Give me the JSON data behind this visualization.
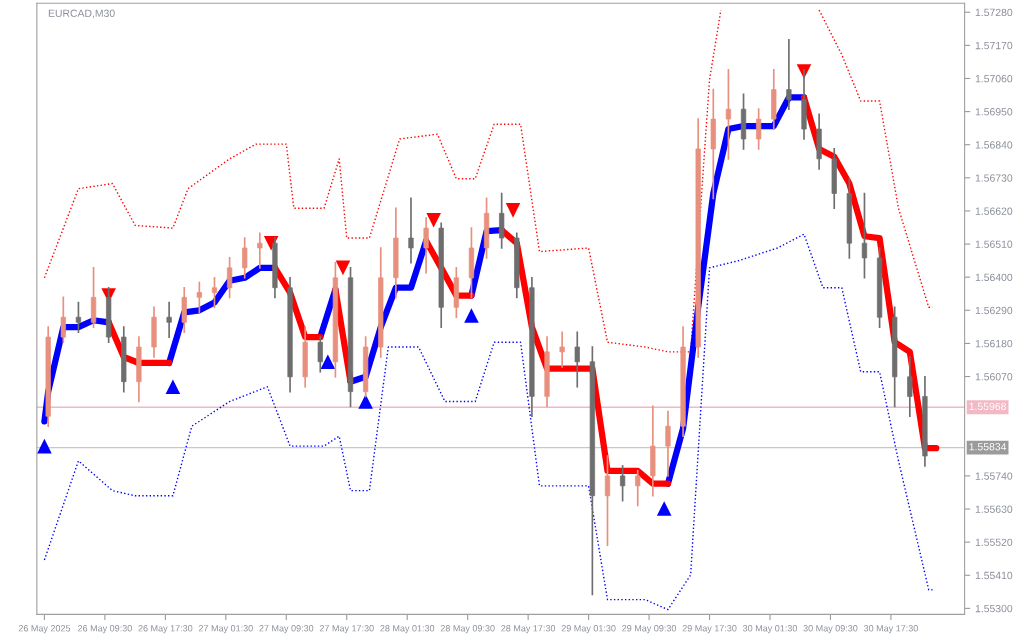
{
  "chart_data": {
    "type": "candlestick",
    "title": "EURCAD,M30",
    "xlim": [
      "2025-05-26T00:30",
      "2025-05-31T03:15"
    ],
    "xticks": [
      {
        "value": "2025-05-26T01:30",
        "label": "26 May 2025"
      },
      {
        "value": "2025-05-26T09:30",
        "label": "26 May 09:30"
      },
      {
        "value": "2025-05-26T17:30",
        "label": "26 May 17:30"
      },
      {
        "value": "2025-05-27T01:30",
        "label": "27 May 01:30"
      },
      {
        "value": "2025-05-27T09:30",
        "label": "27 May 09:30"
      },
      {
        "value": "2025-05-27T17:30",
        "label": "27 May 17:30"
      },
      {
        "value": "2025-05-28T01:30",
        "label": "28 May 01:30"
      },
      {
        "value": "2025-05-28T09:30",
        "label": "28 May 09:30"
      },
      {
        "value": "2025-05-28T17:30",
        "label": "28 May 17:30"
      },
      {
        "value": "2025-05-29T01:30",
        "label": "29 May 01:30"
      },
      {
        "value": "2025-05-29T09:30",
        "label": "29 May 09:30"
      },
      {
        "value": "2025-05-29T17:30",
        "label": "29 May 17:30"
      },
      {
        "value": "2025-05-30T01:30",
        "label": "30 May 01:30"
      },
      {
        "value": "2025-05-30T09:30",
        "label": "30 May 09:30"
      },
      {
        "value": "2025-05-30T17:30",
        "label": "30 May 17:30"
      }
    ],
    "ylim": [
      1.5528,
      1.5731
    ],
    "yticks": [
      {
        "value": 1.553,
        "label": "1.55300"
      },
      {
        "value": 1.5541,
        "label": "1.55410"
      },
      {
        "value": 1.5552,
        "label": "1.55520"
      },
      {
        "value": 1.5563,
        "label": "1.55630"
      },
      {
        "value": 1.5574,
        "label": "1.55740"
      },
      {
        "value": 1.5607,
        "label": "1.56070"
      },
      {
        "value": 1.5618,
        "label": "1.56180"
      },
      {
        "value": 1.5629,
        "label": "1.56290"
      },
      {
        "value": 1.564,
        "label": "1.56400"
      },
      {
        "value": 1.5651,
        "label": "1.56510"
      },
      {
        "value": 1.5662,
        "label": "1.56620"
      },
      {
        "value": 1.5673,
        "label": "1.56730"
      },
      {
        "value": 1.5684,
        "label": "1.56840"
      },
      {
        "value": 1.5695,
        "label": "1.56950"
      },
      {
        "value": 1.5706,
        "label": "1.57060"
      },
      {
        "value": 1.5717,
        "label": "1.57170"
      },
      {
        "value": 1.5728,
        "label": "1.57280"
      }
    ],
    "grid": false,
    "ref_lines": [
      {
        "axis": "y",
        "value": 1.55968,
        "label": "1.55968",
        "color": "#f2b8c6"
      },
      {
        "axis": "y",
        "value": 1.55834,
        "label": "1.55834",
        "color": "#c8c8c8"
      }
    ],
    "series": [
      {
        "x": [
          "2025-05-26T02:00",
          "2025-05-26T04:00",
          "2025-05-26T06:00",
          "2025-05-26T08:00",
          "2025-05-26T10:00",
          "2025-05-26T12:00",
          "2025-05-26T14:00",
          "2025-05-26T16:00",
          "2025-05-26T18:00",
          "2025-05-26T20:00",
          "2025-05-26T22:00",
          "2025-05-27T00:00",
          "2025-05-27T02:00",
          "2025-05-27T04:00",
          "2025-05-27T06:00",
          "2025-05-27T08:00",
          "2025-05-27T10:00",
          "2025-05-27T12:00",
          "2025-05-27T14:00",
          "2025-05-27T16:00",
          "2025-05-27T18:00",
          "2025-05-27T20:00",
          "2025-05-27T22:00",
          "2025-05-28T00:00",
          "2025-05-28T02:00",
          "2025-05-28T04:00",
          "2025-05-28T06:00",
          "2025-05-28T08:00",
          "2025-05-28T10:00",
          "2025-05-28T12:00",
          "2025-05-28T14:00",
          "2025-05-28T16:00",
          "2025-05-28T18:00",
          "2025-05-28T20:00",
          "2025-05-28T22:00",
          "2025-05-29T00:00",
          "2025-05-29T02:00",
          "2025-05-29T04:00",
          "2025-05-29T06:00",
          "2025-05-29T08:00",
          "2025-05-29T10:00",
          "2025-05-29T12:00",
          "2025-05-29T14:00",
          "2025-05-29T16:00",
          "2025-05-29T18:00",
          "2025-05-29T20:00",
          "2025-05-29T22:00",
          "2025-05-30T00:00",
          "2025-05-30T02:00",
          "2025-05-30T04:00",
          "2025-05-30T06:00",
          "2025-05-30T08:00",
          "2025-05-30T10:00",
          "2025-05-30T12:00",
          "2025-05-30T14:00",
          "2025-05-30T16:00",
          "2025-05-30T18:00",
          "2025-05-30T20:00",
          "2025-05-30T22:00"
        ],
        "ohlc": [
          [
            1.55938,
            1.56234,
            1.55905,
            1.56201
          ],
          [
            1.56201,
            1.56333,
            1.56184,
            1.56267
          ],
          [
            1.56267,
            1.56316,
            1.56217,
            1.5625
          ],
          [
            1.5625,
            1.56431,
            1.56234,
            1.56333
          ],
          [
            1.56333,
            1.56365,
            1.56184,
            1.56201
          ],
          [
            1.56201,
            1.56234,
            1.5602,
            1.56053
          ],
          [
            1.56053,
            1.56201,
            1.55987,
            1.56168
          ],
          [
            1.56168,
            1.563,
            1.56135,
            1.56267
          ],
          [
            1.56267,
            1.56316,
            1.56201,
            1.5625
          ],
          [
            1.5625,
            1.56365,
            1.56217,
            1.56333
          ],
          [
            1.56333,
            1.56382,
            1.56283,
            1.56349
          ],
          [
            1.56349,
            1.56398,
            1.563,
            1.56365
          ],
          [
            1.56365,
            1.56464,
            1.56333,
            1.56431
          ],
          [
            1.56431,
            1.5653,
            1.56398,
            1.56497
          ],
          [
            1.56497,
            1.56546,
            1.56431,
            1.56513
          ],
          [
            1.56513,
            1.5653,
            1.56333,
            1.56365
          ],
          [
            1.56365,
            1.56398,
            1.5602,
            1.56069
          ],
          [
            1.56069,
            1.56234,
            1.56036,
            1.56184
          ],
          [
            1.56184,
            1.56201,
            1.56086,
            1.56119
          ],
          [
            1.56119,
            1.56448,
            1.56069,
            1.56398
          ],
          [
            1.56398,
            1.56431,
            1.55971,
            1.5602
          ],
          [
            1.5602,
            1.56201,
            1.56004,
            1.56168
          ],
          [
            1.56168,
            1.56497,
            1.56135,
            1.56398
          ],
          [
            1.56398,
            1.56629,
            1.56333,
            1.5653
          ],
          [
            1.5653,
            1.56662,
            1.56448,
            1.56497
          ],
          [
            1.56497,
            1.56596,
            1.56415,
            1.56563
          ],
          [
            1.56563,
            1.56579,
            1.56234,
            1.563
          ],
          [
            1.563,
            1.56431,
            1.56267,
            1.56398
          ],
          [
            1.56398,
            1.56563,
            1.56333,
            1.56497
          ],
          [
            1.56497,
            1.56662,
            1.56464,
            1.56612
          ],
          [
            1.56612,
            1.56678,
            1.56497,
            1.5653
          ],
          [
            1.5653,
            1.56546,
            1.56333,
            1.56365
          ],
          [
            1.56365,
            1.56398,
            1.55938,
            1.56004
          ],
          [
            1.56004,
            1.56201,
            1.55971,
            1.56152
          ],
          [
            1.56152,
            1.56217,
            1.56102,
            1.56168
          ],
          [
            1.56168,
            1.56217,
            1.56036,
            1.56119
          ],
          [
            1.56119,
            1.56168,
            1.55346,
            1.55674
          ],
          [
            1.55674,
            1.55806,
            1.5551,
            1.5574
          ],
          [
            1.5574,
            1.55773,
            1.55658,
            1.55707
          ],
          [
            1.55707,
            1.55757,
            1.55642,
            1.5574
          ],
          [
            1.5574,
            1.55971,
            1.55674,
            1.55839
          ],
          [
            1.55839,
            1.55954,
            1.5574,
            1.55905
          ],
          [
            1.55905,
            1.56234,
            1.55872,
            1.56168
          ],
          [
            1.56168,
            1.56925,
            1.56135,
            1.56826
          ],
          [
            1.56826,
            1.57023,
            1.56662,
            1.56925
          ],
          [
            1.56925,
            1.57089,
            1.56793,
            1.56958
          ],
          [
            1.56958,
            1.57007,
            1.56826,
            1.56859
          ],
          [
            1.56859,
            1.56958,
            1.56826,
            1.56925
          ],
          [
            1.56925,
            1.57089,
            1.56892,
            1.57023
          ],
          [
            1.57023,
            1.57188,
            1.56958,
            1.5699
          ],
          [
            1.5699,
            1.57089,
            1.56859,
            1.56892
          ],
          [
            1.56892,
            1.56941,
            1.5676,
            1.56793
          ],
          [
            1.56793,
            1.56826,
            1.56629,
            1.56678
          ],
          [
            1.56678,
            1.56727,
            1.56464,
            1.56513
          ],
          [
            1.56513,
            1.56678,
            1.56398,
            1.56464
          ],
          [
            1.56464,
            1.56497,
            1.56234,
            1.56267
          ],
          [
            1.56267,
            1.563,
            1.55971,
            1.56069
          ],
          [
            1.56069,
            1.56135,
            1.55938,
            1.56004
          ],
          [
            1.56004,
            1.56069,
            1.55773,
            1.55806
          ]
        ],
        "colors": [
          "#e8907e",
          "#e8907e",
          "#6e6e6e",
          "#e8907e",
          "#6e6e6e",
          "#6e6e6e",
          "#e8907e",
          "#e8907e",
          "#6e6e6e",
          "#e8907e",
          "#e8907e",
          "#e8907e",
          "#e8907e",
          "#e8907e",
          "#e8907e",
          "#6e6e6e",
          "#6e6e6e",
          "#e8907e",
          "#6e6e6e",
          "#e8907e",
          "#6e6e6e",
          "#e8907e",
          "#e8907e",
          "#e8907e",
          "#6e6e6e",
          "#e8907e",
          "#6e6e6e",
          "#e8907e",
          "#e8907e",
          "#e8907e",
          "#6e6e6e",
          "#6e6e6e",
          "#6e6e6e",
          "#e8907e",
          "#e8907e",
          "#6e6e6e",
          "#6e6e6e",
          "#e8907e",
          "#6e6e6e",
          "#e8907e",
          "#e8907e",
          "#e8907e",
          "#e8907e",
          "#e8907e",
          "#e8907e",
          "#e8907e",
          "#6e6e6e",
          "#e8907e",
          "#e8907e",
          "#6e6e6e",
          "#6e6e6e",
          "#6e6e6e",
          "#6e6e6e",
          "#6e6e6e",
          "#6e6e6e",
          "#6e6e6e",
          "#6e6e6e",
          "#6e6e6e",
          "#6e6e6e"
        ]
      },
      {
        "type": "line",
        "color": "#ff0000",
        "line_style": "dotted",
        "x": [
          "2025-05-26T01:30",
          "2025-05-26T06:00",
          "2025-05-26T10:30",
          "2025-05-26T13:30",
          "2025-05-26T18:30",
          "2025-05-26T20:30",
          "2025-05-27T02:00",
          "2025-05-27T05:30",
          "2025-05-27T09:30",
          "2025-05-27T10:30",
          "2025-05-27T14:30",
          "2025-05-27T16:30",
          "2025-05-27T17:30",
          "2025-05-27T20:30",
          "2025-05-28T00:30",
          "2025-05-28T05:30",
          "2025-05-28T08:00",
          "2025-05-28T10:30",
          "2025-05-28T13:00",
          "2025-05-28T16:30",
          "2025-05-28T19:00",
          "2025-05-29T01:30",
          "2025-05-29T04:00",
          "2025-05-29T09:00",
          "2025-05-29T12:00",
          "2025-05-29T15:00",
          "2025-05-29T17:30",
          "2025-05-29T19:00",
          "2025-05-30T01:00",
          "2025-05-30T08:00",
          "2025-05-30T11:00",
          "2025-05-30T13:30",
          "2025-05-30T16:00",
          "2025-05-30T18:30",
          "2025-05-30T22:30",
          "2025-05-30T23:00"
        ],
        "values": [
          1.56398,
          1.56694,
          1.56711,
          1.56572,
          1.56563,
          1.56694,
          1.56793,
          1.56842,
          1.56842,
          1.56629,
          1.56629,
          1.56793,
          1.5653,
          1.5653,
          1.56859,
          1.56875,
          1.56727,
          1.56727,
          1.56908,
          1.56908,
          1.56485,
          1.56497,
          1.56184,
          1.56168,
          1.56152,
          1.56152,
          1.57056,
          1.57287,
          null,
          1.57287,
          1.57139,
          1.56985,
          1.56985,
          1.56629,
          1.563,
          1.563
        ]
      },
      {
        "type": "line",
        "color": "#0000ff",
        "line_style": "dotted",
        "x": [
          "2025-05-26T01:30",
          "2025-05-26T06:00",
          "2025-05-26T10:30",
          "2025-05-26T13:30",
          "2025-05-26T18:30",
          "2025-05-26T21:00",
          "2025-05-27T02:00",
          "2025-05-27T07:00",
          "2025-05-27T10:00",
          "2025-05-27T14:30",
          "2025-05-27T16:30",
          "2025-05-27T18:00",
          "2025-05-27T20:30",
          "2025-05-27T23:00",
          "2025-05-28T03:00",
          "2025-05-28T06:30",
          "2025-05-28T10:30",
          "2025-05-28T13:00",
          "2025-05-28T16:30",
          "2025-05-28T19:00",
          "2025-05-29T01:30",
          "2025-05-29T04:00",
          "2025-05-29T09:00",
          "2025-05-29T12:00",
          "2025-05-29T15:00",
          "2025-05-29T17:30",
          "2025-05-29T21:30",
          "2025-05-30T02:30",
          "2025-05-30T06:00",
          "2025-05-30T08:30",
          "2025-05-30T11:00",
          "2025-05-30T13:30",
          "2025-05-30T16:00",
          "2025-05-30T18:30",
          "2025-05-30T22:30",
          "2025-05-30T23:00"
        ],
        "values": [
          1.55461,
          1.5579,
          1.55691,
          1.55674,
          1.55674,
          1.55905,
          1.55987,
          1.56036,
          1.55839,
          1.55839,
          1.55872,
          1.55691,
          1.55691,
          1.56168,
          1.56168,
          1.55987,
          1.55987,
          1.56184,
          1.56184,
          1.55707,
          1.55707,
          1.55329,
          1.55329,
          1.55296,
          1.55411,
          1.56431,
          1.56456,
          1.56497,
          1.56543,
          1.56365,
          1.56365,
          1.56086,
          1.56086,
          1.5579,
          1.55362,
          1.55362
        ]
      },
      {
        "type": "line",
        "color": "#0000ff",
        "line_style": "solid",
        "x": [
          "2025-05-26T01:30",
          "2025-05-26T02:00",
          "2025-05-26T04:00",
          "2025-05-26T06:00",
          "2025-05-26T08:00",
          "2025-05-26T10:00",
          "2025-05-26T11:00",
          "2025-05-26T18:00",
          "2025-05-26T20:00",
          "2025-05-26T22:00",
          "2025-05-27T00:00",
          "2025-05-27T02:00",
          "2025-05-27T04:00",
          "2025-05-27T06:00",
          "2025-05-27T08:00",
          "2025-05-27T09:00",
          "2025-05-27T14:00",
          "2025-05-27T16:00",
          "2025-05-27T17:00",
          "2025-05-27T18:00",
          "2025-05-27T20:00",
          "2025-05-27T22:00",
          "2025-05-28T00:00",
          "2025-05-28T02:00",
          "2025-05-28T04:00",
          "2025-05-28T05:00",
          "2025-05-28T10:00",
          "2025-05-28T12:00",
          "2025-05-28T14:00",
          "2025-05-28T15:00",
          "2025-05-29T12:00",
          "2025-05-29T14:00",
          "2025-05-29T16:00",
          "2025-05-29T18:00",
          "2025-05-29T20:00",
          "2025-05-29T22:00",
          "2025-05-30T00:00",
          "2025-05-30T02:00",
          "2025-05-30T04:00",
          "2025-05-30T06:00"
        ],
        "values": [
          1.55921,
          1.5602,
          1.56234,
          1.56234,
          1.56257,
          1.5625,
          null,
          1.56115,
          1.56283,
          1.5629,
          1.56316,
          1.56388,
          1.56398,
          1.56431,
          1.56431,
          null,
          1.56201,
          1.56359,
          null,
          1.56053,
          1.56069,
          1.56234,
          1.56365,
          1.56365,
          1.5652,
          null,
          1.56339,
          1.56553,
          1.56556,
          null,
          1.55714,
          1.55898,
          1.563,
          1.56678,
          1.56892,
          1.56902,
          1.56902,
          1.56902,
          1.56997,
          1.56997
        ]
      },
      {
        "type": "line",
        "color": "#ff0000",
        "line_style": "solid",
        "x": [
          "2025-05-26T10:00",
          "2025-05-26T12:00",
          "2025-05-26T14:00",
          "2025-05-26T16:00",
          "2025-05-26T18:00",
          "2025-05-26T19:00",
          "2025-05-27T08:00",
          "2025-05-27T10:00",
          "2025-05-27T12:00",
          "2025-05-27T14:00",
          "2025-05-27T15:00",
          "2025-05-27T16:00",
          "2025-05-27T18:00",
          "2025-05-27T19:00",
          "2025-05-28T04:00",
          "2025-05-28T06:00",
          "2025-05-28T08:00",
          "2025-05-28T10:00",
          "2025-05-28T11:00",
          "2025-05-28T14:00",
          "2025-05-28T16:00",
          "2025-05-28T18:00",
          "2025-05-28T20:00",
          "2025-05-28T22:00",
          "2025-05-29T00:00",
          "2025-05-29T02:00",
          "2025-05-29T04:00",
          "2025-05-29T06:00",
          "2025-05-29T08:00",
          "2025-05-29T10:00",
          "2025-05-29T12:00",
          "2025-05-29T13:00",
          "2025-05-30T06:00",
          "2025-05-30T08:00",
          "2025-05-30T10:00",
          "2025-05-30T12:00",
          "2025-05-30T14:00",
          "2025-05-30T16:00",
          "2025-05-30T18:00",
          "2025-05-30T20:00",
          "2025-05-30T22:00",
          "2025-05-30T23:30"
        ],
        "values": [
          1.5625,
          1.56135,
          1.56115,
          1.56115,
          1.56115,
          null,
          1.56431,
          1.56349,
          1.56201,
          1.56201,
          null,
          1.56359,
          1.56053,
          null,
          1.5652,
          1.56431,
          1.56339,
          1.56339,
          null,
          1.56556,
          1.56513,
          1.56234,
          1.56096,
          1.56096,
          1.56096,
          1.56096,
          1.55757,
          1.55757,
          1.55757,
          1.55714,
          1.55714,
          null,
          1.56997,
          1.56826,
          1.568,
          1.56711,
          1.56536,
          1.5653,
          1.56184,
          1.56152,
          1.55832,
          1.55832
        ]
      },
      {
        "type": "scatter",
        "color": "#0000ff",
        "marker": "triangle",
        "x": [
          "2025-05-26T01:30",
          "2025-05-26T18:30",
          "2025-05-27T15:00",
          "2025-05-27T20:00",
          "2025-05-28T10:00",
          "2025-05-29T11:30"
        ],
        "values": [
          1.55839,
          1.56036,
          1.56119,
          1.55987,
          1.56273,
          1.55632
        ]
      },
      {
        "type": "scatter",
        "color": "#ff0000",
        "x": [
          "2025-05-26T10:00",
          "2025-05-27T07:30",
          "2025-05-27T17:00",
          "2025-05-28T05:00",
          "2025-05-28T15:30",
          "2025-05-30T06:00"
        ],
        "values": [
          1.56339,
          1.56513,
          1.56431,
          1.56589,
          1.56622,
          1.57083
        ]
      }
    ]
  }
}
